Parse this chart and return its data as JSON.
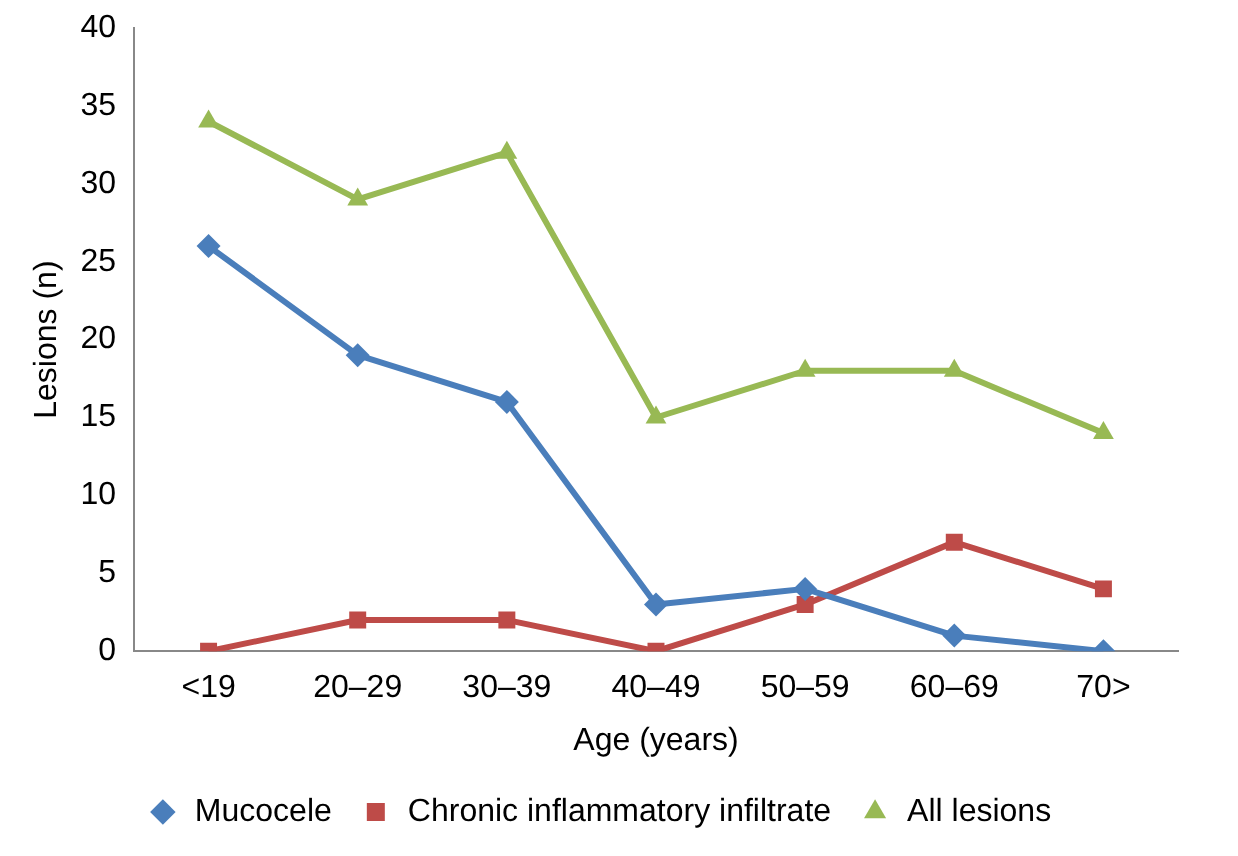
{
  "chart_data": {
    "type": "line",
    "xlabel": "Age (years)",
    "ylabel": "Lesions (n)",
    "categories": [
      "<19",
      "20–29",
      "30–39",
      "40–49",
      "50–59",
      "60–69",
      "70>"
    ],
    "ylim": [
      0,
      40
    ],
    "yticks": [
      0,
      5,
      10,
      15,
      20,
      25,
      30,
      35,
      40
    ],
    "grid": false,
    "legend": "bottom",
    "line_style": "solid",
    "series": [
      {
        "name": "Mucocele",
        "color": "#4a7ebb",
        "marker": "diamond",
        "values": [
          26,
          19,
          16,
          3,
          4,
          1,
          0
        ]
      },
      {
        "name": "Chronic inflammatory infiltrate",
        "color": "#be4b48",
        "marker": "square",
        "values": [
          0,
          2,
          2,
          0,
          3,
          7,
          4
        ]
      },
      {
        "name": "All lesions",
        "color": "#98b954",
        "marker": "triangle",
        "values": [
          34,
          29,
          32,
          15,
          18,
          18,
          14
        ]
      }
    ]
  }
}
